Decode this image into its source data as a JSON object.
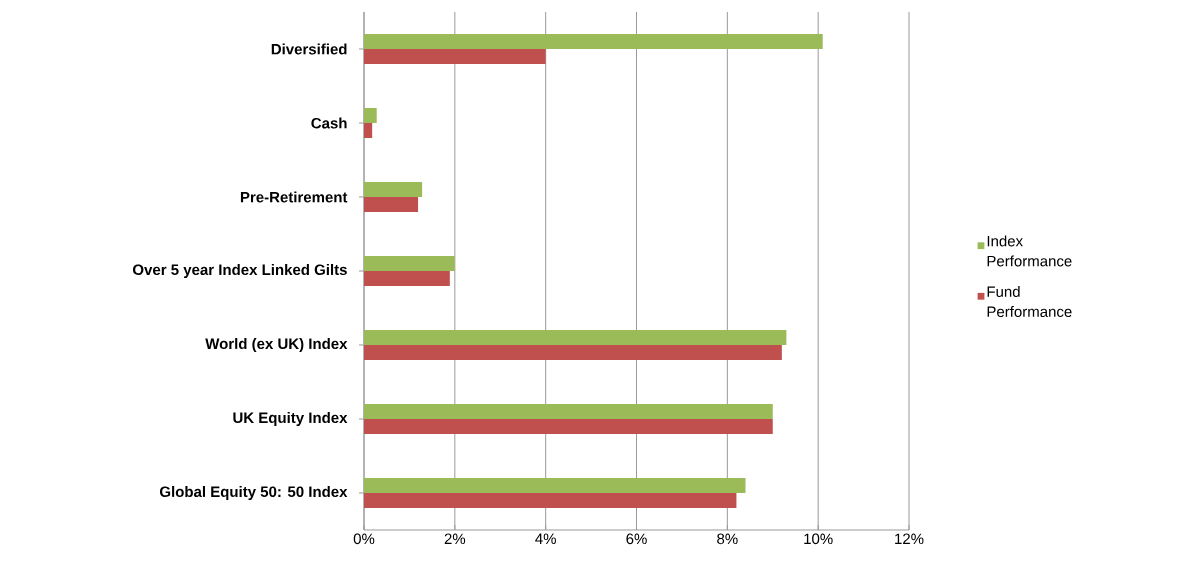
{
  "chart_data": {
    "type": "bar",
    "orientation": "horizontal",
    "categories": [
      "Diversified",
      "Cash",
      "Pre-Retirement",
      "Over 5 year Index Linked Gilts",
      "World (ex UK) Index",
      "UK Equity Index",
      "Global Equity 50: 50 Index"
    ],
    "series": [
      {
        "name": "Index Performance",
        "color": "#9bbb59",
        "values": [
          10.1,
          0.28,
          1.28,
          2.0,
          9.3,
          9.0,
          8.4
        ]
      },
      {
        "name": "Fund Performance",
        "color": "#c0504d",
        "values": [
          4.0,
          0.18,
          1.19,
          1.89,
          9.2,
          9.0,
          8.2
        ]
      }
    ],
    "xlim": [
      0,
      12
    ],
    "xticks": [
      {
        "value": 0,
        "label": "0%"
      },
      {
        "value": 2,
        "label": "2%"
      },
      {
        "value": 4,
        "label": "4%"
      },
      {
        "value": 6,
        "label": "6%"
      },
      {
        "value": 8,
        "label": "8%"
      },
      {
        "value": 10,
        "label": "10%"
      },
      {
        "value": 12,
        "label": "12%"
      }
    ],
    "grid": "x",
    "legend": "right"
  }
}
